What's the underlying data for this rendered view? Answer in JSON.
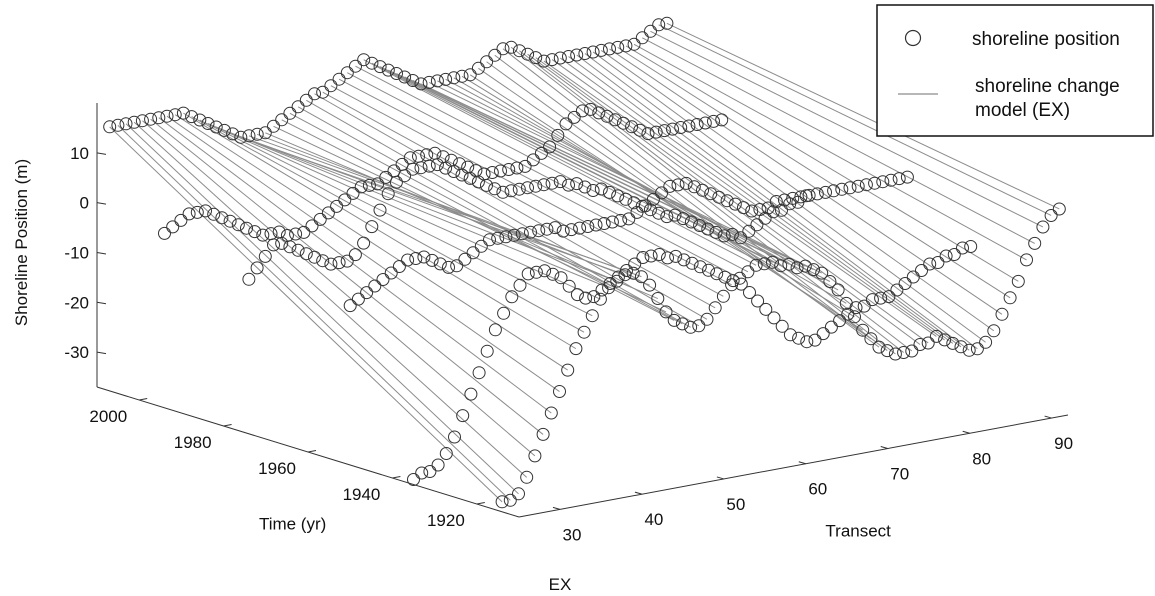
{
  "chart_data": {
    "type": "scatter",
    "title": "",
    "caption": "EX",
    "axes": {
      "x": {
        "label": "Transect",
        "range": [
          25,
          92
        ],
        "ticks": [
          30,
          40,
          50,
          60,
          70,
          80,
          90
        ]
      },
      "y": {
        "label": "Time (yr)",
        "range": [
          1910,
          2010
        ],
        "ticks": [
          1920,
          1940,
          1960,
          1980,
          2000
        ]
      },
      "z": {
        "label": "Shoreline Position (m)",
        "range": [
          -37,
          20
        ],
        "ticks": [
          -30,
          -20,
          -10,
          0,
          10
        ]
      }
    },
    "grid": false,
    "legend": {
      "placement": "top-right",
      "entries": [
        {
          "label": "shoreline position",
          "marker": "circle"
        },
        {
          "label": "shoreline change model (EX)",
          "marker": "line"
        }
      ]
    },
    "survey_years": [
      1914,
      1935,
      1950,
      1974,
      1994,
      2007
    ],
    "transects_start": 25,
    "series": [
      {
        "year": 1914,
        "values": [
          -35,
          -35,
          -34,
          -31,
          -27,
          -23,
          -19,
          -15,
          -11,
          -7,
          -4,
          -1,
          2,
          4,
          5,
          6,
          6,
          5,
          3,
          0,
          -3,
          -5,
          -6,
          -7,
          -7,
          -6,
          -4,
          -2,
          0,
          1,
          2,
          3,
          3,
          3,
          2,
          2,
          1,
          1,
          0,
          -1,
          -3,
          -5,
          -8,
          -11,
          -14,
          -16,
          -18,
          -19,
          -20,
          -20,
          -20,
          -19,
          -19,
          -18,
          -19,
          -20,
          -21,
          -22,
          -22,
          -21,
          -19,
          -16,
          -13,
          -10,
          -6,
          -3,
          0,
          2,
          3
        ]
      },
      {
        "year": 1935,
        "values": [
          -36,
          -35,
          -35,
          -34,
          -32,
          -29,
          -25,
          -21,
          -17,
          -13,
          -9,
          -6,
          -3,
          -1,
          1,
          1,
          1,
          0,
          -1,
          -3,
          -5,
          -6,
          -6,
          -5,
          -4,
          -3,
          -2,
          -1,
          0,
          0,
          0,
          -1,
          -1,
          -2,
          -3,
          -4,
          -5,
          -6,
          -7,
          -8,
          -9,
          -11,
          -13,
          -15,
          -17,
          -19,
          -21,
          -22,
          -23,
          -23,
          -22,
          -21,
          -20,
          -19,
          -18,
          -18,
          -17,
          -17,
          -17,
          -16,
          -15,
          -14,
          -13,
          -12,
          -12,
          -11,
          -11,
          -10,
          -10
        ]
      },
      {
        "year": 1950,
        "values": [
          -5,
          -4,
          -3,
          -2,
          -1,
          0,
          1,
          2,
          2,
          2,
          1,
          0,
          -1,
          -1,
          0,
          1,
          2,
          3,
          3,
          3,
          3,
          3,
          3,
          3,
          3,
          3,
          2,
          2,
          2,
          2,
          2,
          2,
          2,
          2,
          2,
          3,
          4,
          5,
          6,
          7,
          7,
          7,
          6,
          5,
          4,
          3,
          2,
          1,
          0,
          -1,
          -1,
          -1,
          0,
          0,
          0,
          0,
          0,
          0,
          0,
          0,
          0,
          0,
          0,
          0,
          0,
          0,
          0,
          0,
          0
        ]
      },
      {
        "year": 1974,
        "values": [
          -6,
          -4,
          -2,
          0,
          0,
          -1,
          -2,
          -3,
          -4,
          -5,
          -6,
          -6,
          -6,
          -5,
          -3,
          0,
          3,
          6,
          8,
          9,
          10,
          10,
          10,
          10,
          9,
          8,
          7,
          6,
          5,
          4,
          3,
          2,
          2,
          2,
          2,
          2,
          2,
          2,
          2,
          1,
          1,
          0,
          -1,
          -1,
          -2,
          -3,
          -4,
          -5,
          -6,
          -7,
          -8,
          -9,
          -9,
          -10,
          -11,
          -12,
          -13,
          -14,
          -15,
          -15,
          -16,
          -15,
          -14,
          -13,
          -12,
          -12,
          -11,
          -11,
          -10
        ]
      },
      {
        "year": 1994,
        "values": [
          -2,
          -1,
          0,
          1,
          1,
          1,
          0,
          -1,
          -2,
          -3,
          -4,
          -5,
          -6,
          -6,
          -6,
          -7,
          -7,
          -7,
          -6,
          -5,
          -4,
          -3,
          -2,
          -1,
          0,
          0,
          0,
          1,
          2,
          3,
          4,
          4,
          4,
          4,
          3,
          2,
          1,
          0,
          -1,
          -2,
          -2,
          -2,
          -2,
          -2,
          -2,
          -1,
          0,
          1,
          3,
          5,
          6,
          7,
          7,
          6,
          5,
          4,
          3,
          2,
          1,
          0,
          0,
          0,
          0,
          0,
          0,
          0,
          0,
          0,
          0
        ]
      },
      {
        "year": 2007,
        "values": [
          16,
          16,
          16,
          16,
          16,
          16,
          16,
          16,
          16,
          16,
          15,
          14,
          13,
          12,
          11,
          10,
          9,
          9,
          9,
          9,
          10,
          11,
          12,
          13,
          14,
          15,
          15,
          16,
          17,
          18,
          19,
          20,
          19,
          18,
          17,
          16,
          15,
          14,
          13,
          13,
          13,
          13,
          13,
          13,
          13,
          14,
          15,
          16,
          17,
          17,
          16,
          15,
          14,
          13,
          13,
          13,
          13,
          13,
          13,
          13,
          13,
          13,
          13,
          13,
          13,
          14,
          15,
          16,
          16
        ]
      }
    ],
    "model": {
      "name": "shoreline change model (EX)",
      "start_year": 1914,
      "end_year": 2007,
      "start_values": [
        -35,
        -35,
        -34,
        -31,
        -27,
        -23,
        -19,
        -15,
        -11,
        -7,
        -4,
        -1,
        2,
        4,
        5,
        6,
        6,
        5,
        3,
        0,
        -3,
        -5,
        -6,
        -7,
        -7,
        -6,
        -4,
        -2,
        0,
        1,
        2,
        3,
        3,
        3,
        2,
        2,
        1,
        1,
        0,
        -1,
        -3,
        -5,
        -8,
        -11,
        -14,
        -16,
        -18,
        -19,
        -20,
        -20,
        -20,
        -19,
        -19,
        -18,
        -19,
        -20,
        -21,
        -22,
        -22,
        -21,
        -19,
        -16,
        -13,
        -10,
        -6,
        -3,
        0,
        2,
        3
      ],
      "end_values": [
        16,
        16,
        16,
        16,
        16,
        16,
        16,
        16,
        16,
        16,
        15,
        14,
        13,
        12,
        11,
        10,
        9,
        9,
        9,
        9,
        10,
        11,
        12,
        13,
        14,
        15,
        15,
        16,
        17,
        18,
        19,
        20,
        19,
        18,
        17,
        16,
        15,
        14,
        13,
        13,
        13,
        13,
        13,
        13,
        13,
        14,
        15,
        16,
        17,
        17,
        16,
        15,
        14,
        13,
        13,
        13,
        13,
        13,
        13,
        13,
        13,
        13,
        13,
        13,
        13,
        14,
        15,
        16,
        16
      ]
    }
  },
  "colors": {
    "marker_stroke": "#333333",
    "model_line": "#8c8c8c",
    "axis": "#333333",
    "text": "#111111"
  }
}
